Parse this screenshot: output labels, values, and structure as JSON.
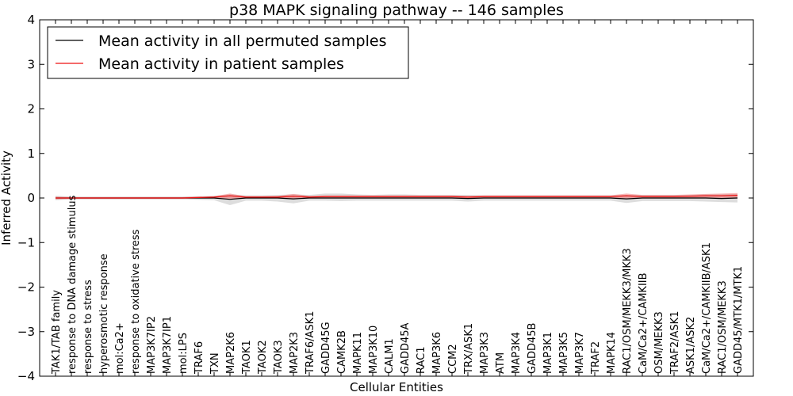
{
  "chart_data": {
    "type": "line",
    "title": "p38 MAPK signaling pathway -- 146 samples",
    "xlabel": "Cellular Entities",
    "ylabel": "Inferred Activity",
    "ylim": [
      -4,
      4
    ],
    "yticks": [
      "4",
      "3",
      "2",
      "1",
      "0",
      "−1",
      "−2",
      "−3",
      "−4"
    ],
    "ytick_values": [
      4,
      3,
      2,
      1,
      0,
      -1,
      -2,
      -3,
      -4
    ],
    "colors": {
      "permuted": "#000000",
      "patient": "#ee1111",
      "permuted_band": "#bbbbbb",
      "patient_band": "#ee3333"
    },
    "legend": {
      "placement": "top-left",
      "entries": [
        "Mean activity in all permuted samples",
        "Mean activity in patient samples"
      ]
    },
    "categories": [
      "TAK1/TAB family",
      "response to DNA damage stimulus",
      "response to stress",
      "hyperosmotic response",
      "mol:Ca2+",
      "response to oxidative stress",
      "MAP3K7IP2",
      "MAP3K7IP1",
      "mol:LPS",
      "TRAF6",
      "TXN",
      "MAP2K6",
      "TAOK1",
      "TAOK2",
      "TAOK3",
      "MAP2K3",
      "TRAF6/ASK1",
      "GADD45G",
      "CAMK2B",
      "MAPK11",
      "MAP3K10",
      "CALM1",
      "GADD45A",
      "RAC1",
      "MAP3K6",
      "CCM2",
      "TRX/ASK1",
      "MAP3K3",
      "ATM",
      "MAP3K4",
      "GADD45B",
      "MAP3K1",
      "MAP3K5",
      "MAP3K7",
      "TRAF2",
      "MAPK14",
      "RAC1/OSM/MEKK3/MKK3",
      "CaM/Ca2+/CAMKIIB",
      "OSM/MEKK3",
      "TRAF2/ASK1",
      "ASK1/ASK2",
      "CaM/Ca2+/CAMKIIB/ASK1",
      "RAC1/OSM/MEKK3",
      "GADD45/MTK1/MTK1"
    ],
    "series": [
      {
        "name": "Mean activity in all permuted samples",
        "values": [
          0,
          0,
          0,
          0,
          0,
          0,
          0,
          0,
          0,
          0,
          0,
          -0.03,
          0,
          0,
          0,
          -0.02,
          0,
          0,
          0,
          0,
          0,
          0,
          0,
          0,
          0,
          0,
          -0.01,
          0,
          0,
          0,
          0,
          0,
          0,
          0,
          0,
          0,
          -0.02,
          0,
          0,
          0,
          0,
          0,
          -0.01,
          0
        ],
        "lower": [
          -0.05,
          -0.03,
          -0.03,
          -0.03,
          -0.03,
          -0.03,
          -0.03,
          -0.03,
          -0.03,
          -0.04,
          -0.05,
          -0.16,
          -0.06,
          -0.06,
          -0.08,
          -0.12,
          -0.06,
          -0.06,
          -0.07,
          -0.06,
          -0.06,
          -0.06,
          -0.06,
          -0.06,
          -0.06,
          -0.06,
          -0.08,
          -0.06,
          -0.06,
          -0.06,
          -0.06,
          -0.06,
          -0.06,
          -0.06,
          -0.06,
          -0.06,
          -0.11,
          -0.07,
          -0.07,
          -0.07,
          -0.07,
          -0.08,
          -0.09,
          -0.1
        ],
        "upper": [
          0.05,
          0.03,
          0.03,
          0.03,
          0.03,
          0.03,
          0.03,
          0.03,
          0.03,
          0.04,
          0.05,
          0.08,
          0.06,
          0.06,
          0.07,
          0.08,
          0.07,
          0.1,
          0.1,
          0.08,
          0.07,
          0.08,
          0.08,
          0.07,
          0.07,
          0.07,
          0.07,
          0.06,
          0.06,
          0.06,
          0.06,
          0.06,
          0.06,
          0.06,
          0.06,
          0.06,
          0.07,
          0.07,
          0.07,
          0.07,
          0.07,
          0.08,
          0.08,
          0.09
        ]
      },
      {
        "name": "Mean activity in patient samples",
        "values": [
          0,
          0,
          0,
          0,
          0,
          0,
          0,
          0,
          0,
          0.01,
          0.02,
          0.05,
          0.02,
          0.02,
          0.02,
          0.04,
          0.02,
          0.03,
          0.03,
          0.03,
          0.03,
          0.03,
          0.03,
          0.03,
          0.03,
          0.03,
          0.02,
          0.03,
          0.03,
          0.03,
          0.03,
          0.03,
          0.03,
          0.03,
          0.03,
          0.03,
          0.05,
          0.03,
          0.03,
          0.03,
          0.04,
          0.05,
          0.05,
          0.06
        ],
        "lower": [
          -0.03,
          -0.02,
          -0.02,
          -0.02,
          -0.02,
          -0.02,
          -0.02,
          -0.02,
          -0.02,
          -0.01,
          -0.01,
          -0.02,
          -0.01,
          -0.01,
          -0.01,
          -0.01,
          -0.01,
          -0.01,
          -0.01,
          -0.01,
          -0.01,
          -0.01,
          -0.01,
          -0.01,
          -0.01,
          -0.01,
          -0.01,
          -0.01,
          -0.01,
          -0.01,
          -0.01,
          -0.01,
          -0.01,
          -0.01,
          -0.01,
          -0.01,
          -0.01,
          -0.01,
          -0.01,
          -0.01,
          -0.01,
          -0.01,
          -0.01,
          -0.01
        ],
        "upper": [
          0.03,
          0.02,
          0.02,
          0.02,
          0.02,
          0.02,
          0.02,
          0.02,
          0.02,
          0.03,
          0.04,
          0.1,
          0.04,
          0.04,
          0.05,
          0.09,
          0.05,
          0.06,
          0.06,
          0.06,
          0.06,
          0.06,
          0.06,
          0.06,
          0.06,
          0.06,
          0.05,
          0.06,
          0.06,
          0.06,
          0.06,
          0.06,
          0.06,
          0.06,
          0.06,
          0.06,
          0.1,
          0.07,
          0.07,
          0.07,
          0.08,
          0.09,
          0.1,
          0.11
        ]
      }
    ]
  }
}
